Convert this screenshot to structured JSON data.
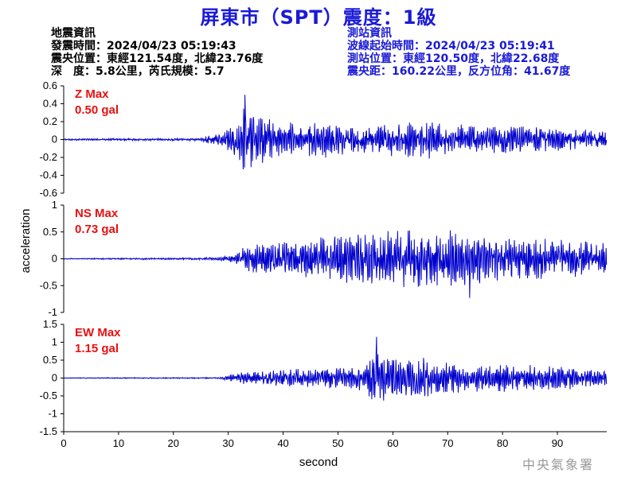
{
  "title": "屏東市（SPT）震度：1級",
  "earthquake": {
    "heading": "地震資訊",
    "time": "發震時間：2024/04/23 05:19:43",
    "location": "震央位置：東經121.54度，北緯23.76度",
    "depth": "深　度：5.8公里，芮氏規模：5.7"
  },
  "station": {
    "heading": "測站資訊",
    "wave_start": "波線起始時間：2024/04/23 05:19:41",
    "location": "測站位置：東經120.50度，北緯22.68度",
    "distance": "震央距：160.22公里，反方位角：41.67度"
  },
  "watermark": "中央氣象署",
  "colors": {
    "title": "#1a1ad6",
    "trace": "#0000cc",
    "max_label": "#e81010",
    "station_info": "#1a1ad6"
  },
  "chart_data": {
    "type": "line",
    "xlabel": "second",
    "ylabel": "acceleration",
    "xlim": [
      0,
      99
    ],
    "x_ticks": [
      "0",
      "10",
      "20",
      "30",
      "40",
      "50",
      "60",
      "70",
      "80",
      "90"
    ],
    "panels": [
      {
        "name": "Z",
        "max_title": "Z Max",
        "max_value": "0.50 gal",
        "ylim": [
          -0.6,
          0.6
        ],
        "y_ticks": [
          "0.6",
          "0.4",
          "0.2",
          "0",
          "-0.2",
          "-0.4",
          "-0.6"
        ],
        "envelope": [
          [
            0,
            0.01
          ],
          [
            25,
            0.015
          ],
          [
            26,
            0.05
          ],
          [
            29,
            0.08
          ],
          [
            31,
            0.18
          ],
          [
            32.5,
            0.3
          ],
          [
            33,
            0.5
          ],
          [
            34,
            0.35
          ],
          [
            40,
            0.22
          ],
          [
            50,
            0.2
          ],
          [
            60,
            0.2
          ],
          [
            67,
            0.22
          ],
          [
            70,
            0.18
          ],
          [
            80,
            0.17
          ],
          [
            90,
            0.13
          ],
          [
            99,
            0.1
          ]
        ],
        "peak": {
          "t": 33,
          "v": 0.5
        }
      },
      {
        "name": "NS",
        "max_title": "NS Max",
        "max_value": "0.73 gal",
        "ylim": [
          -1,
          1
        ],
        "y_ticks": [
          "1",
          "0.5",
          "0",
          "-0.5",
          "-1"
        ],
        "envelope": [
          [
            0,
            0.01
          ],
          [
            25,
            0.02
          ],
          [
            30,
            0.05
          ],
          [
            32,
            0.12
          ],
          [
            33,
            0.25
          ],
          [
            38,
            0.3
          ],
          [
            45,
            0.38
          ],
          [
            50,
            0.45
          ],
          [
            55,
            0.5
          ],
          [
            60,
            0.55
          ],
          [
            65,
            0.6
          ],
          [
            70,
            0.55
          ],
          [
            75,
            0.5
          ],
          [
            80,
            0.45
          ],
          [
            90,
            0.38
          ],
          [
            99,
            0.3
          ]
        ],
        "peak": {
          "t": 74,
          "v": -0.73
        }
      },
      {
        "name": "EW",
        "max_title": "EW Max",
        "max_value": "1.15 gal",
        "ylim": [
          -1.5,
          1.5
        ],
        "y_ticks": [
          "1.5",
          "1",
          "0.5",
          "0",
          "-0.5",
          "-1",
          "-1.5"
        ],
        "envelope": [
          [
            0,
            0.01
          ],
          [
            28,
            0.02
          ],
          [
            30,
            0.08
          ],
          [
            33,
            0.18
          ],
          [
            40,
            0.25
          ],
          [
            50,
            0.3
          ],
          [
            55,
            0.4
          ],
          [
            57,
            0.9
          ],
          [
            60,
            0.7
          ],
          [
            65,
            0.6
          ],
          [
            70,
            0.45
          ],
          [
            80,
            0.4
          ],
          [
            90,
            0.35
          ],
          [
            99,
            0.25
          ]
        ],
        "peak": {
          "t": 57,
          "v": 1.15
        }
      }
    ]
  }
}
